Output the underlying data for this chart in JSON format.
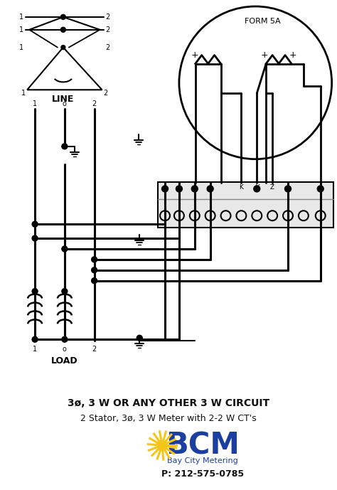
{
  "bg_color": "#ffffff",
  "line_color": "#000000",
  "title_line1": "3ø, 3 W OR ANY OTHER 3 W CIRCUIT",
  "title_line2": "2 Stator, 3ø, 3 W Meter with 2-2 W CT's",
  "bcm_text": "BCM",
  "bcm_sub": "Bay City Metering",
  "bcm_phone": "P: 212-575-0785",
  "form_label": "FORM 5A",
  "line_label": "LINE",
  "load_label": "LOAD"
}
